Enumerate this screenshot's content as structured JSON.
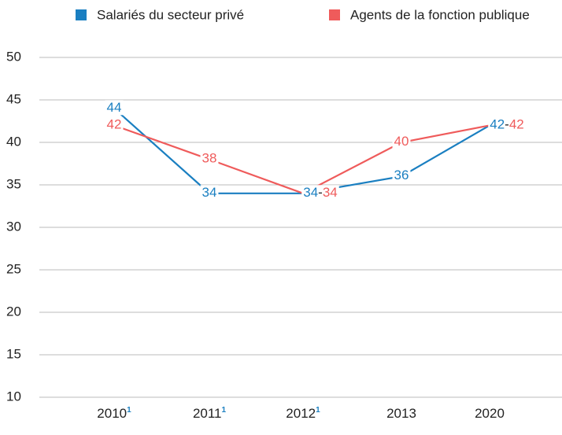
{
  "chart_data": {
    "type": "line",
    "categories": [
      "2010",
      "2011",
      "2012",
      "2013",
      "2020"
    ],
    "category_footnotes": [
      "1",
      "1",
      "1",
      null,
      null
    ],
    "series": [
      {
        "name": "Salariés du secteur privé",
        "color": "#1a7fc1",
        "values": [
          44,
          34,
          34,
          36,
          42
        ]
      },
      {
        "name": "Agents de la fonction publique",
        "color": "#ef5b5b",
        "values": [
          42,
          38,
          34,
          40,
          42
        ]
      }
    ],
    "label_separator": "-",
    "ylim": [
      10,
      50
    ],
    "yticks": [
      10,
      15,
      20,
      25,
      30,
      35,
      40,
      45,
      50
    ],
    "grid": true
  }
}
